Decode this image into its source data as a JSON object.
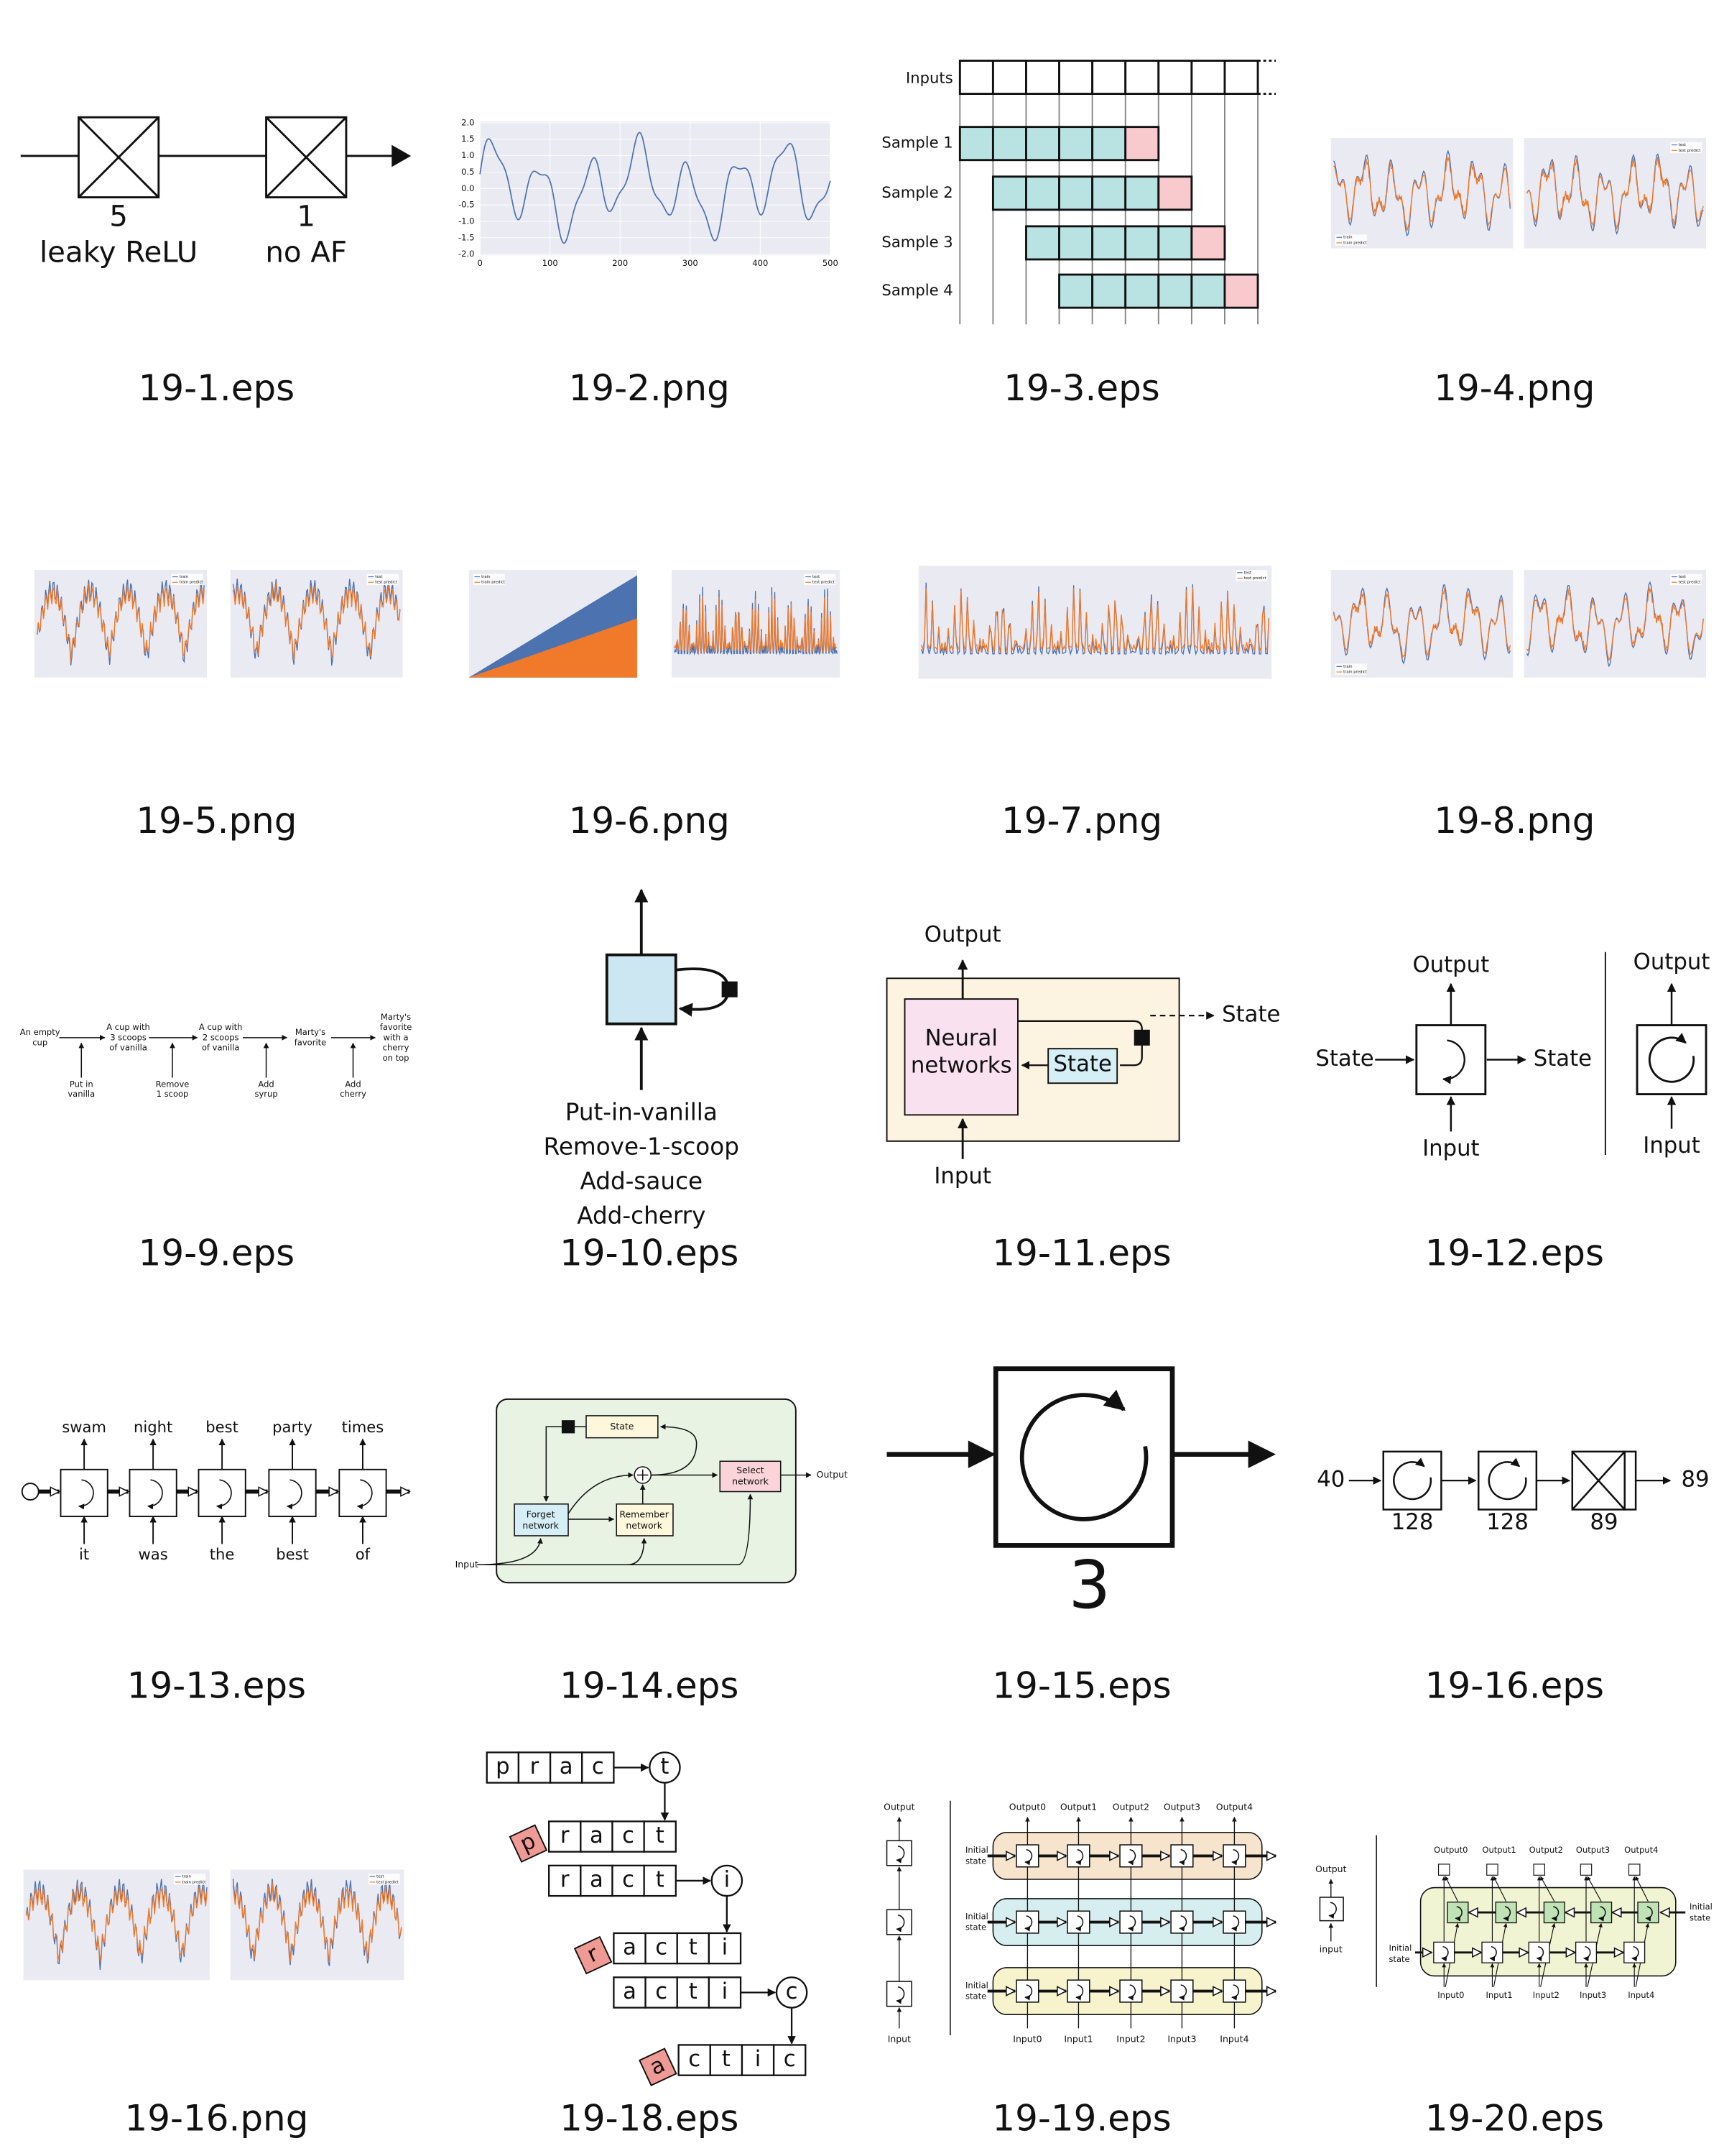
{
  "thumbnails": [
    {
      "caption": "19-1.eps",
      "texts": [
        "5",
        "leaky ReLU",
        "1",
        "no AF"
      ]
    },
    {
      "caption": "19-2.png",
      "yticks": [
        "2.0",
        "1.5",
        "1.0",
        "0.5",
        "0.0",
        "-0.5",
        "-1.0",
        "-1.5",
        "-2.0"
      ],
      "xticks": [
        "0",
        "100",
        "200",
        "300",
        "400",
        "500"
      ]
    },
    {
      "caption": "19-3.eps",
      "header": "Inputs",
      "samples": [
        "Sample 1",
        "Sample 2",
        "Sample 3",
        "Sample 4"
      ]
    },
    {
      "caption": "19-4.png",
      "legends": [
        [
          "train",
          "train predict"
        ],
        [
          "test",
          "test predict"
        ]
      ]
    },
    {
      "caption": "19-5.png",
      "legends": [
        [
          "train",
          "train predict"
        ],
        [
          "test",
          "test predict"
        ]
      ]
    },
    {
      "caption": "19-6.png",
      "legends": [
        [
          "train",
          "train predict"
        ],
        [
          "test",
          "test predict"
        ]
      ]
    },
    {
      "caption": "19-7.png",
      "legends": [
        [
          "test",
          "test predict"
        ]
      ]
    },
    {
      "caption": "19-8.png",
      "legends": [
        [
          "train",
          "train predict"
        ],
        [
          "test",
          "test predict"
        ]
      ]
    },
    {
      "caption": "19-9.eps",
      "nodes": [
        [
          "An empty",
          "cup"
        ],
        [
          "A cup with",
          "3 scoops",
          "of vanilla"
        ],
        [
          "A cup with",
          "2 scoops",
          "of vanilla"
        ],
        [
          "Marty's",
          "favorite"
        ],
        [
          "Marty's",
          "favorite",
          "with a",
          "cherry",
          "on top"
        ]
      ],
      "actions": [
        [
          "Put in",
          "vanilla"
        ],
        [
          "Remove",
          "1 scoop"
        ],
        [
          "Add",
          "syrup"
        ],
        [
          "Add",
          "cherry"
        ]
      ]
    },
    {
      "caption": "19-10.eps",
      "texts": [
        "Put-in-vanilla",
        "Remove-1-scoop",
        "Add-sauce",
        "Add-cherry"
      ]
    },
    {
      "caption": "19-11.eps",
      "texts": [
        "Output",
        "Neural",
        "networks",
        "State",
        "State",
        "Input"
      ]
    },
    {
      "caption": "19-12.eps",
      "texts": [
        "Output",
        "State",
        "State",
        "Input",
        "Output",
        "Input"
      ]
    },
    {
      "caption": "19-13.eps",
      "outputs": [
        "swam",
        "night",
        "best",
        "party",
        "times"
      ],
      "inputs": [
        "it",
        "was",
        "the",
        "best",
        "of"
      ]
    },
    {
      "caption": "19-14.eps",
      "texts": [
        "State",
        "Select",
        "network",
        "Output",
        "Forget",
        "network",
        "Remember",
        "network",
        "Input"
      ]
    },
    {
      "caption": "19-15.eps",
      "texts": [
        "3"
      ]
    },
    {
      "caption": "19-16.eps",
      "texts": [
        "40",
        "128",
        "128",
        "89",
        "89"
      ]
    },
    {
      "caption": "19-16.png",
      "legends": [
        [
          "train",
          "train predict"
        ],
        [
          "test",
          "test predict"
        ]
      ]
    },
    {
      "caption": "19-18.eps",
      "rows": [
        {
          "letters": [
            "p",
            "r",
            "a",
            "c"
          ],
          "next": "t"
        },
        {
          "dropped": "p",
          "letters": [
            "r",
            "a",
            "c",
            "t"
          ]
        },
        {
          "letters": [
            "r",
            "a",
            "c",
            "t"
          ],
          "next": "i"
        },
        {
          "dropped": "r",
          "letters": [
            "a",
            "c",
            "t",
            "i"
          ]
        },
        {
          "letters": [
            "a",
            "c",
            "t",
            "i"
          ],
          "next": "c"
        },
        {
          "dropped": "a",
          "letters": [
            "c",
            "t",
            "i",
            "c"
          ]
        }
      ]
    },
    {
      "caption": "19-19.eps",
      "left": [
        "Output",
        "Input"
      ],
      "states": [
        [
          "Initial",
          "state"
        ],
        [
          "Initial",
          "state"
        ],
        [
          "Initial",
          "state"
        ]
      ],
      "outputs": [
        "Output0",
        "Output1",
        "Output2",
        "Output3",
        "Output4"
      ],
      "inputs": [
        "Input0",
        "Input1",
        "Input2",
        "Input3",
        "Input4"
      ]
    },
    {
      "caption": "19-20.eps",
      "left": [
        "Output",
        "input"
      ],
      "states": [
        [
          "Initial",
          "state"
        ],
        [
          "Initial",
          "state"
        ]
      ],
      "outputs": [
        "Output0",
        "Output1",
        "Output2",
        "Output3",
        "Output4"
      ],
      "inputs": [
        "Input0",
        "Input1",
        "Input2",
        "Input3",
        "Input4"
      ]
    }
  ]
}
